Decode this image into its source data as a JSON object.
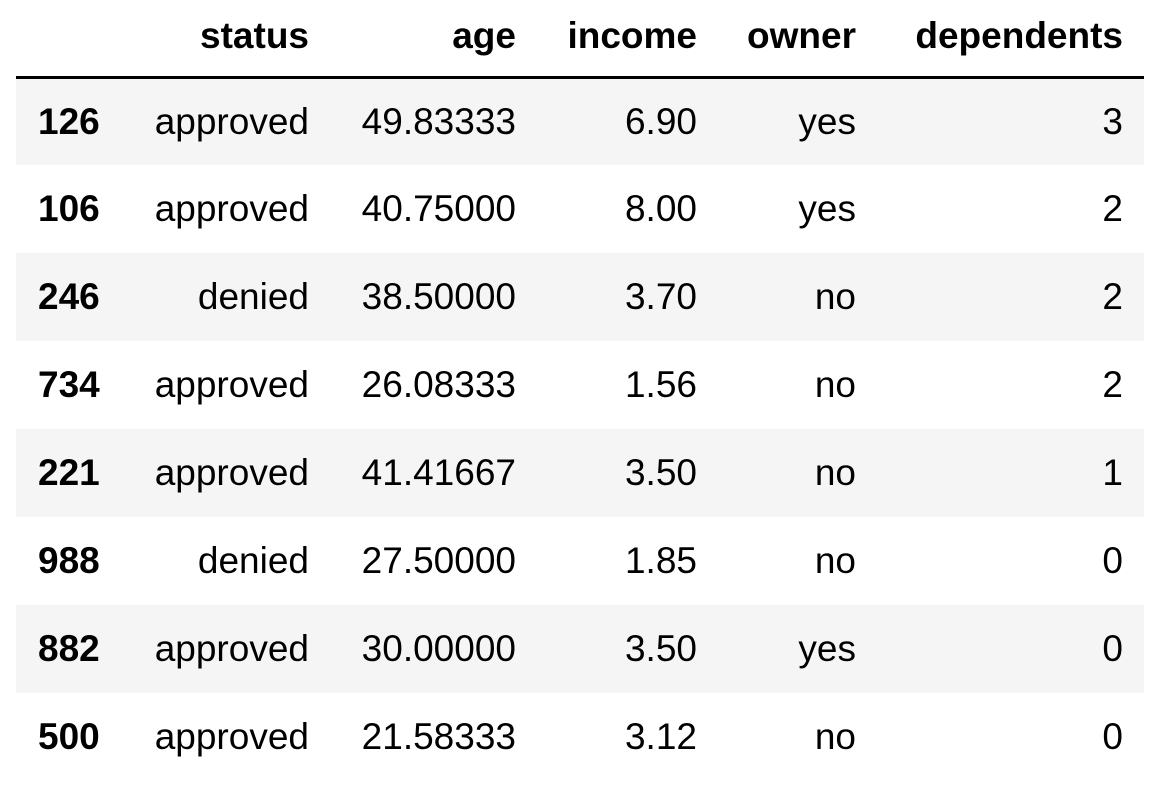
{
  "table": {
    "index_header": "",
    "columns": [
      "status",
      "age",
      "income",
      "owner",
      "dependents"
    ],
    "rows": [
      {
        "index": "126",
        "status": "approved",
        "age": "49.83333",
        "income": "6.90",
        "owner": "yes",
        "dependents": "3"
      },
      {
        "index": "106",
        "status": "approved",
        "age": "40.75000",
        "income": "8.00",
        "owner": "yes",
        "dependents": "2"
      },
      {
        "index": "246",
        "status": "denied",
        "age": "38.50000",
        "income": "3.70",
        "owner": "no",
        "dependents": "2"
      },
      {
        "index": "734",
        "status": "approved",
        "age": "26.08333",
        "income": "1.56",
        "owner": "no",
        "dependents": "2"
      },
      {
        "index": "221",
        "status": "approved",
        "age": "41.41667",
        "income": "3.50",
        "owner": "no",
        "dependents": "1"
      },
      {
        "index": "988",
        "status": "denied",
        "age": "27.50000",
        "income": "1.85",
        "owner": "no",
        "dependents": "0"
      },
      {
        "index": "882",
        "status": "approved",
        "age": "30.00000",
        "income": "3.50",
        "owner": "yes",
        "dependents": "0"
      },
      {
        "index": "500",
        "status": "approved",
        "age": "21.58333",
        "income": "3.12",
        "owner": "no",
        "dependents": "0"
      }
    ]
  },
  "colors": {
    "striped_row": "#f5f5f5",
    "plain_row": "#ffffff",
    "header_rule": "#000000",
    "text": "#000000"
  }
}
